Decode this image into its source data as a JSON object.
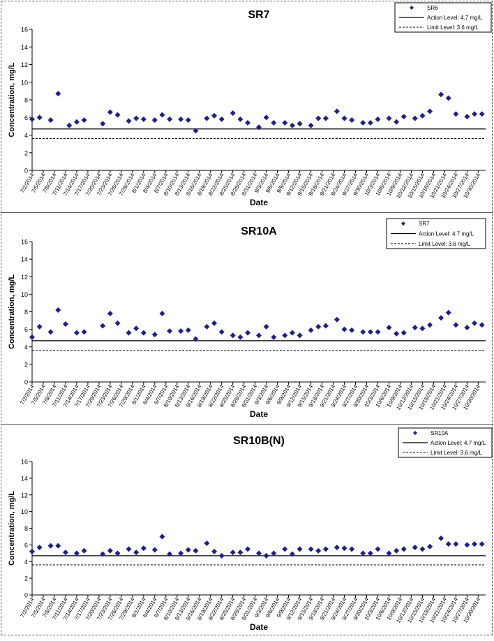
{
  "chart_data": [
    {
      "type": "scatter",
      "title": "SR7",
      "xlabel": "Date",
      "ylabel": "Concentration, mg/L",
      "ylim": [
        0,
        16
      ],
      "yticks": [
        0,
        2,
        4,
        6,
        8,
        10,
        12,
        14,
        16
      ],
      "xlim": [
        "7/2/2014",
        "11/1/2014"
      ],
      "xticks": [
        "7/2/2014",
        "7/5/2014",
        "7/8/2014",
        "7/11/2014",
        "7/14/2014",
        "7/17/2014",
        "7/20/2014",
        "7/23/2014",
        "7/26/2014",
        "7/29/2014",
        "8/1/2014",
        "8/4/2014",
        "8/7/2014",
        "8/10/2014",
        "8/13/2014",
        "8/16/2014",
        "8/19/2014",
        "8/22/2014",
        "8/25/2014",
        "8/28/2014",
        "8/31/2014",
        "9/3/2014",
        "9/6/2014",
        "9/9/2014",
        "9/12/2014",
        "9/15/2014",
        "9/18/2014",
        "9/21/2014",
        "9/24/2014",
        "9/27/2014",
        "9/30/2014",
        "10/3/2014",
        "10/6/2014",
        "10/9/2014",
        "10/12/2014",
        "10/15/2014",
        "10/18/2014",
        "10/21/2014",
        "10/24/2014",
        "10/27/2014",
        "10/30/2014"
      ],
      "legend_position": "top-right",
      "legend": [
        "SR6",
        "Action Level: 4.7 mg/L",
        "Limit Level: 3.6 mg/L"
      ],
      "series": [
        {
          "name": "SR6",
          "color": "#1f1f8f",
          "x": [
            "7/2/2014",
            "7/4/2014",
            "7/7/2014",
            "7/9/2014",
            "7/12/2014",
            "7/14/2014",
            "7/16/2014",
            "7/21/2014",
            "7/23/2014",
            "7/25/2014",
            "7/28/2014",
            "7/30/2014",
            "8/1/2014",
            "8/4/2014",
            "8/6/2014",
            "8/8/2014",
            "8/11/2014",
            "8/13/2014",
            "8/15/2014",
            "8/18/2014",
            "8/20/2014",
            "8/22/2014",
            "8/25/2014",
            "8/27/2014",
            "8/29/2014",
            "9/1/2014",
            "9/3/2014",
            "9/5/2014",
            "9/8/2014",
            "9/10/2014",
            "9/12/2014",
            "9/15/2014",
            "9/17/2014",
            "9/19/2014",
            "9/22/2014",
            "9/24/2014",
            "9/26/2014",
            "9/29/2014",
            "10/1/2014",
            "10/3/2014",
            "10/6/2014",
            "10/8/2014",
            "10/10/2014",
            "10/13/2014",
            "10/15/2014",
            "10/17/2014",
            "10/20/2014",
            "10/22/2014",
            "10/24/2014",
            "10/27/2014",
            "10/29/2014",
            "10/31/2014"
          ],
          "y": [
            5.8,
            6.0,
            5.7,
            8.7,
            5.1,
            5.5,
            5.7,
            5.3,
            6.6,
            6.3,
            5.6,
            5.9,
            5.8,
            5.7,
            6.3,
            5.8,
            5.8,
            5.7,
            4.5,
            5.9,
            6.2,
            5.8,
            6.5,
            5.8,
            5.4,
            4.9,
            6.0,
            5.4,
            5.4,
            5.1,
            5.3,
            5.1,
            5.9,
            5.9,
            6.7,
            5.9,
            5.7,
            5.4,
            5.4,
            5.8,
            5.9,
            5.5,
            6.1,
            5.9,
            6.2,
            6.7,
            8.6,
            8.2,
            6.4,
            6.1,
            6.4,
            6.4
          ]
        },
        {
          "name": "Action Level: 4.7 mg/L",
          "style": "solid",
          "value": 4.7
        },
        {
          "name": "Limit Level: 3.6 mg/L",
          "style": "dashed",
          "value": 3.6
        }
      ]
    },
    {
      "type": "scatter",
      "title": "SR10A",
      "xlabel": "Date",
      "ylabel": "Concentration, mg/L",
      "ylim": [
        0,
        16
      ],
      "yticks": [
        0,
        2,
        4,
        6,
        8,
        10,
        12,
        14,
        16
      ],
      "xlim": [
        "7/2/2014",
        "11/1/2014"
      ],
      "xticks": [
        "7/2/2014",
        "7/5/2014",
        "7/8/2014",
        "7/11/2014",
        "7/14/2014",
        "7/17/2014",
        "7/20/2014",
        "7/23/2014",
        "7/26/2014",
        "7/29/2014",
        "8/1/2014",
        "8/4/2014",
        "8/7/2014",
        "8/10/2014",
        "8/13/2014",
        "8/16/2014",
        "8/19/2014",
        "8/22/2014",
        "8/25/2014",
        "8/28/2014",
        "8/31/2014",
        "9/3/2014",
        "9/6/2014",
        "9/9/2014",
        "9/12/2014",
        "9/15/2014",
        "9/18/2014",
        "9/21/2014",
        "9/24/2014",
        "9/27/2014",
        "9/30/2014",
        "10/3/2014",
        "10/6/2014",
        "10/9/2014",
        "10/12/2014",
        "10/15/2014",
        "10/18/2014",
        "10/21/2014",
        "10/24/2014",
        "10/27/2014",
        "10/30/2014"
      ],
      "legend_position": "top-right",
      "legend": [
        "SR7",
        "Action Level: 4.7 mg/L",
        "Limit Level: 3.6 mg/L"
      ],
      "series": [
        {
          "name": "SR7",
          "color": "#1f1f8f",
          "x": [
            "7/2/2014",
            "7/4/2014",
            "7/7/2014",
            "7/9/2014",
            "7/11/2014",
            "7/14/2014",
            "7/16/2014",
            "7/21/2014",
            "7/23/2014",
            "7/25/2014",
            "7/28/2014",
            "7/30/2014",
            "8/1/2014",
            "8/4/2014",
            "8/6/2014",
            "8/8/2014",
            "8/11/2014",
            "8/13/2014",
            "8/15/2014",
            "8/18/2014",
            "8/20/2014",
            "8/22/2014",
            "8/25/2014",
            "8/27/2014",
            "8/29/2014",
            "9/1/2014",
            "9/3/2014",
            "9/5/2014",
            "9/8/2014",
            "9/10/2014",
            "9/12/2014",
            "9/15/2014",
            "9/17/2014",
            "9/19/2014",
            "9/22/2014",
            "9/24/2014",
            "9/26/2014",
            "9/29/2014",
            "10/1/2014",
            "10/3/2014",
            "10/6/2014",
            "10/8/2014",
            "10/10/2014",
            "10/13/2014",
            "10/15/2014",
            "10/17/2014",
            "10/20/2014",
            "10/22/2014",
            "10/24/2014",
            "10/27/2014",
            "10/29/2014",
            "10/31/2014"
          ],
          "y": [
            5.1,
            6.3,
            5.7,
            8.2,
            6.6,
            5.6,
            5.7,
            6.4,
            7.8,
            6.7,
            5.6,
            6.1,
            5.6,
            5.4,
            7.8,
            5.8,
            5.8,
            5.9,
            4.9,
            6.3,
            6.7,
            5.7,
            5.3,
            5.1,
            5.6,
            5.3,
            6.3,
            5.1,
            5.3,
            5.6,
            5.3,
            5.9,
            6.3,
            6.4,
            7.1,
            6.0,
            5.9,
            5.7,
            5.7,
            5.7,
            6.2,
            5.5,
            5.6,
            6.2,
            6.1,
            6.5,
            7.3,
            7.9,
            6.5,
            6.2,
            6.7,
            6.5
          ]
        },
        {
          "name": "Action Level: 4.7 mg/L",
          "style": "solid",
          "value": 4.7
        },
        {
          "name": "Limit Level: 3.6 mg/L",
          "style": "dashed",
          "value": 3.6
        }
      ]
    },
    {
      "type": "scatter",
      "title": "SR10B(N)",
      "xlabel": "Date",
      "ylabel": "Concentration, mg/L",
      "ylim": [
        0,
        16
      ],
      "yticks": [
        0,
        2,
        4,
        6,
        8,
        10,
        12,
        14,
        16
      ],
      "xlim": [
        "7/2/2014",
        "11/1/2014"
      ],
      "xticks": [
        "7/2/2014",
        "7/5/2014",
        "7/8/2014",
        "7/11/2014",
        "7/14/2014",
        "7/17/2014",
        "7/20/2014",
        "7/23/2014",
        "7/26/2014",
        "7/29/2014",
        "8/1/2014",
        "8/4/2014",
        "8/7/2014",
        "8/10/2014",
        "8/13/2014",
        "8/16/2014",
        "8/19/2014",
        "8/22/2014",
        "8/25/2014",
        "8/28/2014",
        "8/31/2014",
        "9/3/2014",
        "9/6/2014",
        "9/9/2014",
        "9/12/2014",
        "9/15/2014",
        "9/18/2014",
        "9/21/2014",
        "9/24/2014",
        "9/27/2014",
        "9/30/2014",
        "10/3/2014",
        "10/6/2014",
        "10/9/2014",
        "10/12/2014",
        "10/15/2014",
        "10/18/2014",
        "10/21/2014",
        "10/24/2014",
        "10/27/2014",
        "10/30/2014"
      ],
      "legend_position": "top-right",
      "legend": [
        "SR10A",
        "Action Level: 4.7 mg/L",
        "Limit Level: 3.6 mg/L"
      ],
      "series": [
        {
          "name": "SR10A",
          "color": "#1f1f8f",
          "x": [
            "7/2/2014",
            "7/4/2014",
            "7/7/2014",
            "7/9/2014",
            "7/11/2014",
            "7/14/2014",
            "7/16/2014",
            "7/21/2014",
            "7/23/2014",
            "7/25/2014",
            "7/28/2014",
            "7/30/2014",
            "8/1/2014",
            "8/4/2014",
            "8/6/2014",
            "8/8/2014",
            "8/11/2014",
            "8/13/2014",
            "8/15/2014",
            "8/18/2014",
            "8/20/2014",
            "8/22/2014",
            "8/25/2014",
            "8/27/2014",
            "8/29/2014",
            "9/1/2014",
            "9/3/2014",
            "9/5/2014",
            "9/8/2014",
            "9/10/2014",
            "9/12/2014",
            "9/15/2014",
            "9/17/2014",
            "9/19/2014",
            "9/22/2014",
            "9/24/2014",
            "9/26/2014",
            "9/29/2014",
            "10/1/2014",
            "10/3/2014",
            "10/6/2014",
            "10/8/2014",
            "10/10/2014",
            "10/13/2014",
            "10/15/2014",
            "10/17/2014",
            "10/20/2014",
            "10/22/2014",
            "10/24/2014",
            "10/27/2014",
            "10/29/2014",
            "10/31/2014"
          ],
          "y": [
            5.2,
            5.7,
            5.9,
            5.9,
            5.1,
            5.0,
            5.3,
            4.9,
            5.3,
            5.0,
            5.5,
            5.1,
            5.6,
            5.4,
            7.0,
            4.9,
            5.0,
            5.4,
            5.3,
            6.2,
            5.2,
            4.7,
            5.1,
            5.1,
            5.5,
            5.0,
            4.7,
            5.0,
            5.5,
            4.9,
            5.5,
            5.5,
            5.3,
            5.5,
            5.7,
            5.6,
            5.5,
            5.0,
            5.0,
            5.5,
            5.0,
            5.3,
            5.5,
            5.7,
            5.5,
            5.8,
            6.8,
            6.1,
            6.1,
            6.0,
            6.1,
            6.1
          ]
        },
        {
          "name": "Action Level: 4.7 mg/L",
          "style": "solid",
          "value": 4.7
        },
        {
          "name": "Limit Level: 3.6 mg/L",
          "style": "dashed",
          "value": 3.6
        }
      ]
    }
  ]
}
